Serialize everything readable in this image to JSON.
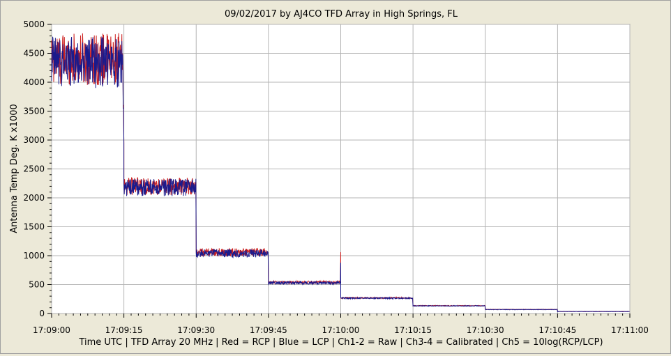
{
  "chart_data": {
    "type": "line",
    "title": "09/02/2017  by  AJ4CO TFD Array  in  High Springs, FL",
    "xlabel": "Time UTC | TFD Array 20 MHz | Red = RCP | Blue = LCP | Ch1-2 = Raw | Ch3-4 = Calibrated | Ch5 = 10log(RCP/LCP)",
    "ylabel": "Antenna Temp Deg. K x1000",
    "xlim_seconds": [
      0,
      120
    ],
    "ylim": [
      0,
      5000
    ],
    "x_ticks": [
      "17:09:00",
      "17:09:15",
      "17:09:30",
      "17:09:45",
      "17:10:00",
      "17:10:15",
      "17:10:30",
      "17:10:45",
      "17:11:00"
    ],
    "y_ticks": [
      0,
      500,
      1000,
      1500,
      2000,
      2500,
      3000,
      3500,
      4000,
      4500,
      5000
    ],
    "grid": true,
    "colors": {
      "rcp": "#cc2222",
      "lcp": "#1a1a8c",
      "grid": "#b4b4b4",
      "plot_bg": "#ffffff"
    },
    "series": [
      {
        "name": "RCP",
        "color": "#cc2222",
        "steps": [
          {
            "t_start": "17:09:00",
            "t_end": "17:09:15",
            "level": 4400,
            "noise": 450
          },
          {
            "t_start": "17:09:15",
            "t_end": "17:09:30",
            "level": 2200,
            "noise": 150
          },
          {
            "t_start": "17:09:30",
            "t_end": "17:09:45",
            "level": 1060,
            "noise": 70
          },
          {
            "t_start": "17:09:45",
            "t_end": "17:10:00",
            "level": 540,
            "noise": 25
          },
          {
            "t_start": "17:10:00",
            "t_end": "17:10:15",
            "level": 270,
            "noise": 12
          },
          {
            "t_start": "17:10:15",
            "t_end": "17:10:30",
            "level": 135,
            "noise": 6
          },
          {
            "t_start": "17:10:30",
            "t_end": "17:10:45",
            "level": 70,
            "noise": 4
          },
          {
            "t_start": "17:10:45",
            "t_end": "17:11:00",
            "level": 35,
            "noise": 3
          }
        ]
      },
      {
        "name": "LCP",
        "color": "#1a1a8c",
        "steps": [
          {
            "t_start": "17:09:00",
            "t_end": "17:09:15",
            "level": 4350,
            "noise": 450
          },
          {
            "t_start": "17:09:15",
            "t_end": "17:09:30",
            "level": 2180,
            "noise": 150
          },
          {
            "t_start": "17:09:30",
            "t_end": "17:09:45",
            "level": 1040,
            "noise": 70
          },
          {
            "t_start": "17:09:45",
            "t_end": "17:10:00",
            "level": 530,
            "noise": 25
          },
          {
            "t_start": "17:10:00",
            "t_end": "17:10:15",
            "level": 265,
            "noise": 12
          },
          {
            "t_start": "17:10:15",
            "t_end": "17:10:30",
            "level": 132,
            "noise": 6
          },
          {
            "t_start": "17:10:30",
            "t_end": "17:10:45",
            "level": 68,
            "noise": 4
          },
          {
            "t_start": "17:10:45",
            "t_end": "17:11:00",
            "level": 34,
            "noise": 3
          }
        ]
      }
    ],
    "annotations": [
      {
        "x": "17:10:00",
        "y": 1060,
        "note": "spike"
      }
    ]
  }
}
